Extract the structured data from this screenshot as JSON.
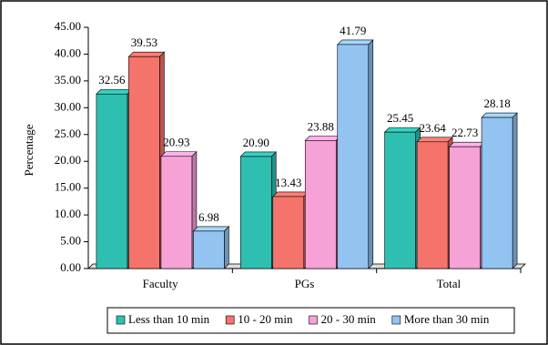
{
  "chart_data": {
    "type": "bar",
    "y_label": "Percentage",
    "categories": [
      "Faculty",
      "PGs",
      "Total"
    ],
    "series": [
      {
        "name": "Less than 10 min",
        "color": "#2fbfb1",
        "values": [
          32.56,
          20.9,
          25.45
        ],
        "value_labels": [
          "32.56",
          "20.90",
          "25.45"
        ]
      },
      {
        "name": "10 - 20 min",
        "color": "#f4736a",
        "values": [
          39.53,
          13.43,
          23.64
        ],
        "value_labels": [
          "39.53",
          "13.43",
          "23.64"
        ]
      },
      {
        "name": "20 - 30 min",
        "color": "#f7a2d6",
        "values": [
          20.93,
          23.88,
          22.73
        ],
        "value_labels": [
          "20.93",
          "23.88",
          "22.73"
        ]
      },
      {
        "name": "More than 30 min",
        "color": "#93c3f1",
        "values": [
          6.98,
          41.79,
          28.18
        ],
        "value_labels": [
          "6.98",
          "41.79",
          "28.18"
        ]
      }
    ],
    "ylim": [
      0,
      45
    ],
    "yticks": [
      {
        "value": 0,
        "label": "0.00"
      },
      {
        "value": 5,
        "label": "5.00"
      },
      {
        "value": 10,
        "label": "10.00"
      },
      {
        "value": 15,
        "label": "15.00"
      },
      {
        "value": 20,
        "label": "20.00"
      },
      {
        "value": 25,
        "label": "25.00"
      },
      {
        "value": 30,
        "label": "30.00"
      },
      {
        "value": 35,
        "label": "35.00"
      },
      {
        "value": 40,
        "label": "40.00"
      },
      {
        "value": 45,
        "label": "45.00"
      }
    ],
    "grid": false
  }
}
